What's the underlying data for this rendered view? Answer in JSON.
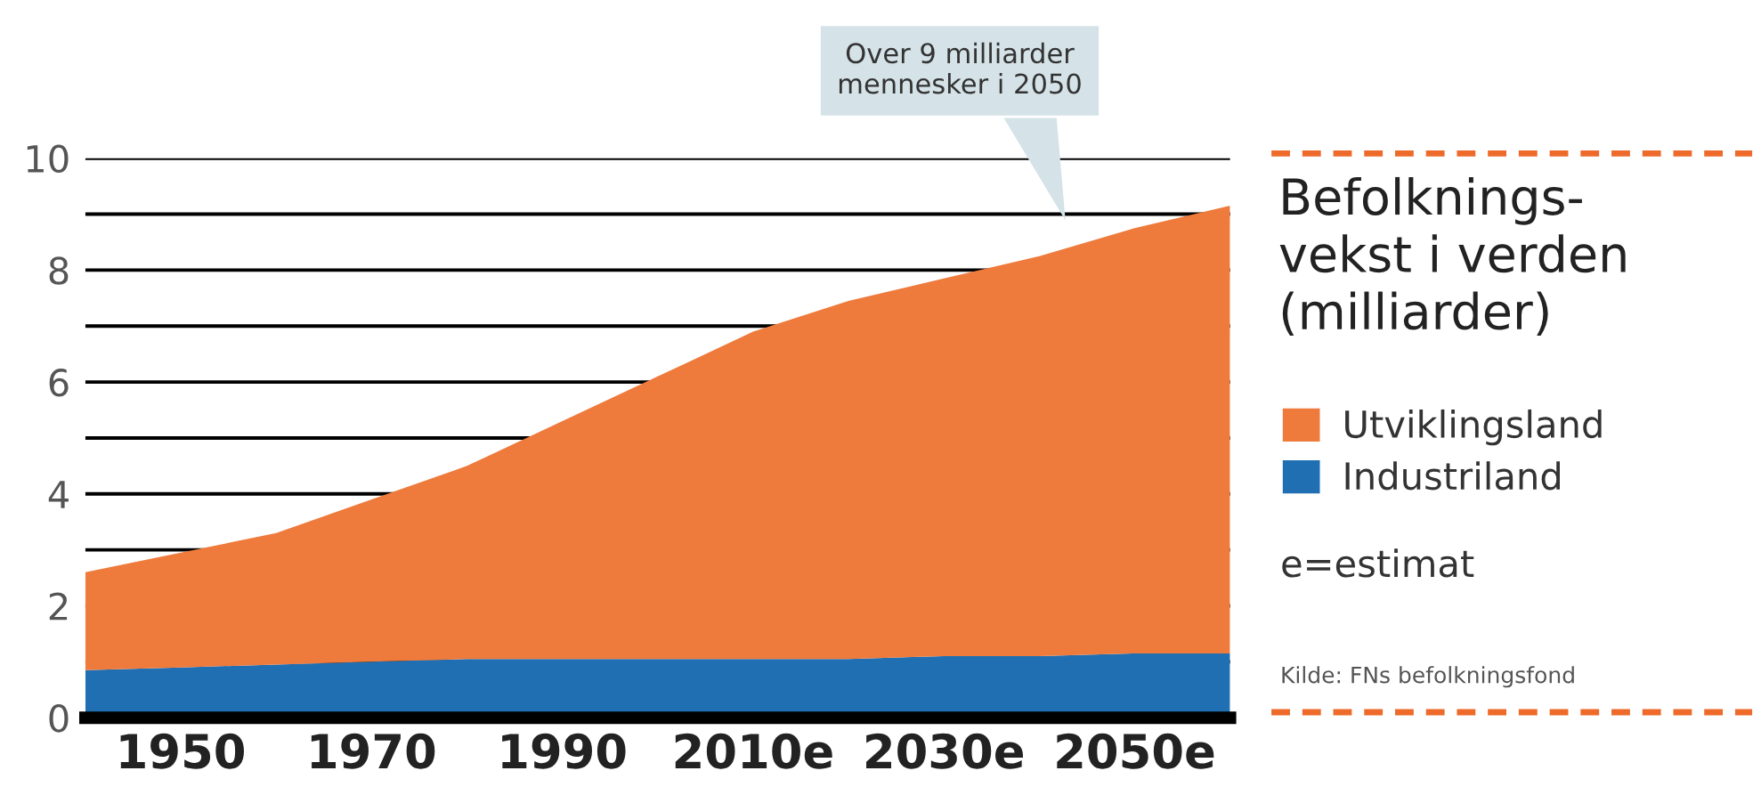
{
  "chart_data": {
    "type": "area",
    "stacked": true,
    "title": "Befolknings-\nvekst i verden\n(milliarder)",
    "x": [
      1940,
      1950,
      1960,
      1970,
      1980,
      1990,
      2000,
      2010,
      2020,
      2030,
      2040,
      2050,
      2060
    ],
    "series": [
      {
        "name": "Industriland",
        "color": "#1f6fb2",
        "values": [
          0.85,
          0.9,
          0.95,
          1.0,
          1.05,
          1.05,
          1.05,
          1.05,
          1.05,
          1.1,
          1.1,
          1.15,
          1.15
        ]
      },
      {
        "name": "Utviklingsland",
        "color": "#ee7a3c",
        "values": [
          1.75,
          2.05,
          2.35,
          2.9,
          3.45,
          4.25,
          5.05,
          5.85,
          6.4,
          6.75,
          7.15,
          7.6,
          8.0
        ]
      }
    ],
    "xlim": [
      1940,
      2060
    ],
    "xticks": [
      {
        "value": 1950,
        "label": "1950"
      },
      {
        "value": 1970,
        "label": "1970"
      },
      {
        "value": 1990,
        "label": "1990"
      },
      {
        "value": 2010,
        "label": "2010e"
      },
      {
        "value": 2030,
        "label": "2030e"
      },
      {
        "value": 2050,
        "label": "2050e"
      }
    ],
    "ylim": [
      0,
      10
    ],
    "yticks": [
      0,
      {
        "value": 1,
        "label": null
      },
      2,
      {
        "value": 3,
        "label": null
      },
      4,
      {
        "value": 5,
        "label": null
      },
      6,
      {
        "value": 7,
        "label": null
      },
      8,
      {
        "value": 9,
        "label": null
      },
      10
    ],
    "grid": "y",
    "legend": "right",
    "annotations": [
      "Over 9 milliarder\nmennesker i 2050",
      "e=estimat",
      "Kilde: FNs befolkningsfond"
    ]
  }
}
